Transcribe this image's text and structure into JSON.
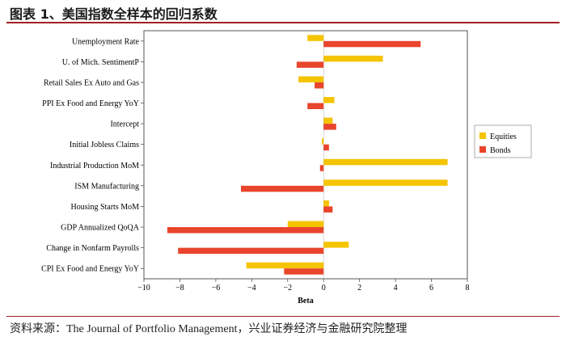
{
  "title": "图表 1、美国指数全样本的回归系数",
  "source": "资料来源：The Journal of Portfolio Management，兴业证券经济与金融研究院整理",
  "chart_data": {
    "type": "bar",
    "orientation": "horizontal",
    "categories": [
      "Unemployment Rate",
      "U. of Mich. SentimentP",
      "Retail Sales Ex Auto and Gas",
      "PPI Ex Food and Energy YoY",
      "Intercept",
      "Initial Jobless Claims",
      "Industrial Production MoM",
      "ISM Manufacturing",
      "Housing Starts MoM",
      "GDP Annualized QoQA",
      "Change in Nonfarm Payrolls",
      "CPI Ex Food and Energy YoY"
    ],
    "series": [
      {
        "name": "Equities",
        "color": "#f5c400",
        "values": [
          -0.9,
          3.3,
          -1.4,
          0.6,
          0.5,
          -0.1,
          6.9,
          6.9,
          0.3,
          -2.0,
          1.4,
          -4.3
        ]
      },
      {
        "name": "Bonds",
        "color": "#e8452c",
        "values": [
          5.4,
          -1.5,
          -0.5,
          -0.9,
          0.7,
          0.3,
          -0.2,
          -4.6,
          0.5,
          -8.7,
          -8.1,
          -2.2
        ]
      }
    ],
    "xlim": [
      -10,
      8
    ],
    "xticks": [
      -10,
      -8,
      -6,
      -4,
      -2,
      0,
      2,
      4,
      6,
      8
    ],
    "xtick_labels": [
      "−10",
      "−8",
      "−6",
      "−4",
      "−2",
      "0",
      "2",
      "4",
      "6",
      "8"
    ],
    "xlabel": "Beta",
    "ylabel": "",
    "legend": {
      "placement": "right",
      "entries": [
        "Equities",
        "Bonds"
      ]
    }
  }
}
